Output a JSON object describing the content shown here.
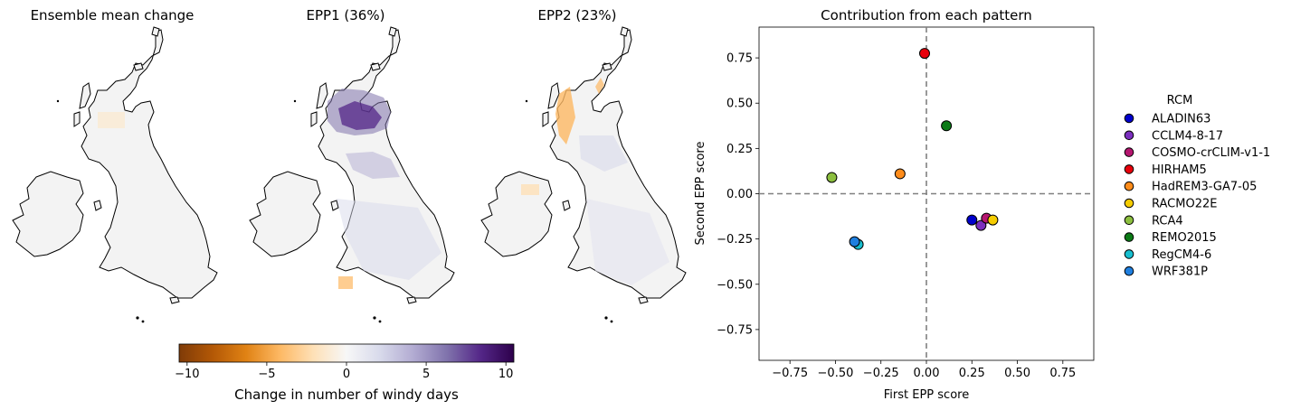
{
  "maps": [
    {
      "id": "mean",
      "title": "Ensemble mean change"
    },
    {
      "id": "epp1",
      "title": "EPP1 (36%)"
    },
    {
      "id": "epp2",
      "title": "EPP2 (23%)"
    }
  ],
  "colorbar": {
    "label": "Change in number of windy days",
    "min": -10.5,
    "max": 10.5,
    "ticks": [
      -10,
      -5,
      0,
      5,
      10
    ],
    "tick_labels": [
      "−10",
      "−5",
      "0",
      "5",
      "10"
    ],
    "colormap": "PuOr"
  },
  "chart_data": {
    "type": "scatter",
    "title": "Contribution from each pattern",
    "xlabel": "First EPP score",
    "ylabel": "Second EPP score",
    "xlim": [
      -0.92,
      0.92
    ],
    "ylim": [
      -0.92,
      0.92
    ],
    "xticks": [
      -0.75,
      -0.5,
      -0.25,
      0.0,
      0.25,
      0.5,
      0.75
    ],
    "xtick_labels": [
      "−0.75",
      "−0.50",
      "−0.25",
      "0.00",
      "0.25",
      "0.50",
      "0.75"
    ],
    "yticks": [
      -0.75,
      -0.5,
      -0.25,
      0.0,
      0.25,
      0.5,
      0.75
    ],
    "ytick_labels": [
      "−0.75",
      "−0.50",
      "−0.25",
      "0.00",
      "0.25",
      "0.50",
      "0.75"
    ],
    "reference_lines": {
      "x": 0.0,
      "y": 0.0,
      "style": "dashed"
    },
    "grid": false,
    "legend": {
      "title": "RCM",
      "placement": "outside-right"
    },
    "series": [
      {
        "name": "ALADIN63",
        "color": "#0000cc",
        "x": 0.25,
        "y": -0.145
      },
      {
        "name": "CCLM4-8-17",
        "color": "#7b2fbe",
        "x": 0.3,
        "y": -0.175
      },
      {
        "name": "COSMO-crCLIM-v1-1",
        "color": "#b5166f",
        "x": 0.33,
        "y": -0.135
      },
      {
        "name": "HIRHAM5",
        "color": "#e8000b",
        "x": -0.01,
        "y": 0.775
      },
      {
        "name": "HadREM3-GA7-05",
        "color": "#ff8c1a",
        "x": -0.145,
        "y": 0.11
      },
      {
        "name": "RACMO22E",
        "color": "#f5cc00",
        "x": 0.365,
        "y": -0.145
      },
      {
        "name": "RCA4",
        "color": "#8cbf3f",
        "x": -0.52,
        "y": 0.09
      },
      {
        "name": "REMO2015",
        "color": "#0b7a16",
        "x": 0.11,
        "y": 0.375
      },
      {
        "name": "RegCM4-6",
        "color": "#17becf",
        "x": -0.375,
        "y": -0.28
      },
      {
        "name": "WRF381P",
        "color": "#1f7fdf",
        "x": -0.395,
        "y": -0.265
      }
    ]
  }
}
